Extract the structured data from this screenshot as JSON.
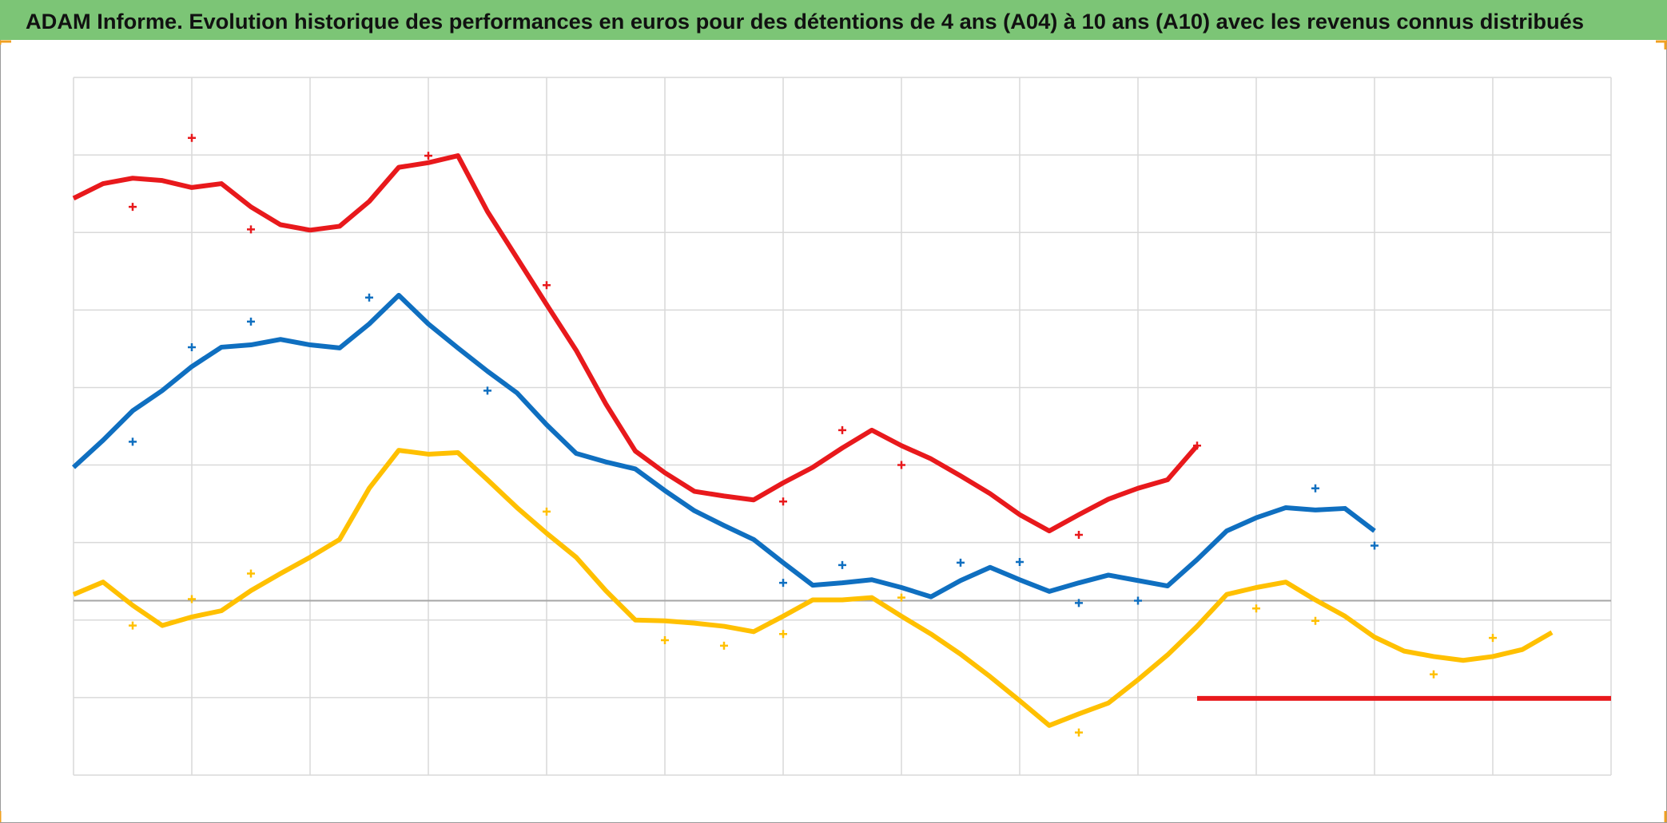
{
  "chart_data": {
    "type": "line",
    "title": "ADAM Informe. Evolution historique des performances en euros pour des détentions de 4 ans (A04) à 10 ans (A10) avec les revenus connus distribués",
    "xlim": [
      0,
      13
    ],
    "xticks": [
      0,
      1,
      2,
      3,
      4,
      5,
      6,
      7,
      8,
      9,
      10,
      11,
      12,
      13
    ],
    "ylim": [
      0,
      9
    ],
    "yticks": [
      0,
      1,
      2,
      3,
      4,
      5,
      6,
      7,
      8,
      9
    ],
    "baseline": 2.25,
    "grid": true,
    "series": [
      {
        "type": "line",
        "color": "#e8191c",
        "x": [
          0,
          0.25,
          0.5,
          0.75,
          1,
          1.25,
          1.5,
          1.75,
          2,
          2.25,
          2.5,
          2.75,
          3,
          3.25,
          3.5,
          4,
          4.25,
          4.5,
          4.75,
          5,
          5.25,
          5.5,
          5.75,
          6,
          6.25,
          6.5,
          6.75,
          7,
          7.25,
          7.5,
          7.75,
          8,
          8.25,
          8.5,
          8.75,
          9,
          9.25,
          9.5
        ],
        "values": [
          7.44,
          7.63,
          7.7,
          7.67,
          7.58,
          7.63,
          7.33,
          7.1,
          7.03,
          7.08,
          7.4,
          7.84,
          7.9,
          7.99,
          7.27,
          6.07,
          5.48,
          4.79,
          4.18,
          3.9,
          3.66,
          3.6,
          3.55,
          3.77,
          3.97,
          4.22,
          4.45,
          4.25,
          4.08,
          3.86,
          3.63,
          3.36,
          3.15,
          3.36,
          3.56,
          3.7,
          3.81,
          4.25
        ]
      },
      {
        "type": "line",
        "color": "#0f6fc0",
        "x": [
          0,
          0.25,
          0.5,
          0.75,
          1,
          1.25,
          1.5,
          1.75,
          2,
          2.25,
          2.5,
          2.75,
          3,
          3.25,
          3.5,
          3.75,
          4,
          4.25,
          4.5,
          4.75,
          5,
          5.25,
          5.5,
          5.75,
          6,
          6.25,
          6.5,
          6.75,
          7,
          7.25,
          7.5,
          7.75,
          8,
          8.25,
          8.5,
          8.75,
          9,
          9.25,
          9.5,
          9.75,
          10,
          10.25,
          10.5,
          10.75,
          11
        ],
        "values": [
          3.97,
          4.32,
          4.7,
          4.96,
          5.27,
          5.52,
          5.55,
          5.62,
          5.55,
          5.51,
          5.82,
          6.19,
          5.82,
          5.51,
          5.21,
          4.93,
          4.52,
          4.15,
          4.04,
          3.95,
          3.67,
          3.41,
          3.22,
          3.04,
          2.74,
          2.45,
          2.48,
          2.52,
          2.42,
          2.3,
          2.51,
          2.68,
          2.52,
          2.37,
          2.48,
          2.58,
          2.51,
          2.44,
          2.78,
          3.15,
          3.32,
          3.45,
          3.42,
          3.44,
          3.15
        ]
      },
      {
        "type": "line",
        "color": "#ffc000",
        "x": [
          0,
          0.25,
          0.5,
          0.75,
          1,
          1.25,
          1.5,
          1.75,
          2,
          2.25,
          2.5,
          2.75,
          3,
          3.25,
          3.5,
          3.75,
          4,
          4.25,
          4.5,
          4.75,
          5,
          5.25,
          5.5,
          5.75,
          6,
          6.25,
          6.5,
          6.75,
          7,
          7.25,
          7.5,
          7.75,
          8,
          8.25,
          8.5,
          8.75,
          9,
          9.25,
          9.5,
          9.75,
          10,
          10.25,
          10.5,
          10.75,
          11,
          11.25,
          11.5,
          11.75,
          12,
          12.25,
          12.5
        ],
        "values": [
          2.33,
          2.49,
          2.19,
          1.93,
          2.04,
          2.12,
          2.38,
          2.6,
          2.81,
          3.04,
          3.7,
          4.19,
          4.14,
          4.16,
          3.81,
          3.45,
          3.12,
          2.81,
          2.38,
          2.0,
          1.99,
          1.96,
          1.92,
          1.85,
          2.05,
          2.26,
          2.26,
          2.29,
          2.05,
          1.82,
          1.56,
          1.27,
          0.96,
          0.64,
          0.79,
          0.93,
          1.23,
          1.55,
          1.92,
          2.33,
          2.42,
          2.49,
          2.26,
          2.05,
          1.78,
          1.6,
          1.53,
          1.48,
          1.53,
          1.62,
          1.84
        ]
      },
      {
        "type": "line",
        "color": "#e8191c",
        "x": [
          9.5,
          13
        ],
        "values": [
          0.99,
          0.99
        ]
      },
      {
        "type": "scatter",
        "color": "#e8191c",
        "x": [
          0.5,
          1,
          1.5,
          3,
          4,
          6,
          6.5,
          7,
          8.5,
          9.5
        ],
        "values": [
          7.33,
          8.22,
          7.04,
          7.99,
          6.32,
          3.53,
          4.45,
          4.0,
          3.1,
          4.25
        ]
      },
      {
        "type": "scatter",
        "color": "#0f6fc0",
        "x": [
          0.5,
          1,
          1.5,
          2.5,
          3.5,
          6,
          6.5,
          7.5,
          8,
          8.5,
          9,
          10.5,
          11
        ],
        "values": [
          4.3,
          5.52,
          5.85,
          6.16,
          4.96,
          2.48,
          2.71,
          2.74,
          2.75,
          2.22,
          2.25,
          3.7,
          2.96
        ]
      },
      {
        "type": "scatter",
        "color": "#ffc000",
        "x": [
          0.5,
          1,
          1.5,
          4,
          5,
          5.5,
          6,
          7,
          8.5,
          10,
          10.5,
          11.5,
          12
        ],
        "values": [
          1.93,
          2.27,
          2.6,
          3.4,
          1.74,
          1.67,
          1.82,
          2.29,
          0.55,
          2.15,
          1.99,
          1.3,
          1.77
        ]
      }
    ]
  }
}
